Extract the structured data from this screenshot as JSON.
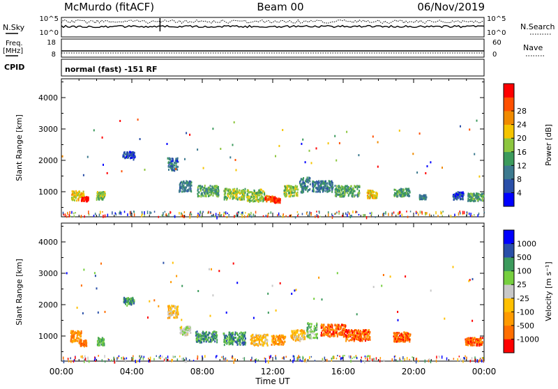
{
  "header": {
    "station": "McMurdo (fitACF)",
    "beam": "Beam 00",
    "date": "06/Nov/2019",
    "mode": "normal (fast) -151 RF"
  },
  "left_labels": {
    "nsky": "N.Sky",
    "freq": "Freq.",
    "freq_unit": "[MHz]",
    "cpid": "CPID"
  },
  "right_labels": {
    "nsearch": "N.Search",
    "nave": "Nave"
  },
  "noise_axis": {
    "left_ticks": [
      "10^5",
      "10^0"
    ],
    "right_ticks": [
      "10^5",
      "10^0"
    ]
  },
  "freq_axis": {
    "left_ticks": [
      "18",
      "8"
    ],
    "right_ticks": [
      "60",
      "0"
    ]
  },
  "colors": {
    "power": [
      "#0000ff",
      "#2a4fa8",
      "#3d7a8f",
      "#3c9a5c",
      "#8dc63f",
      "#f5c400",
      "#f08a00",
      "#ff5000",
      "#ff0000"
    ],
    "velocity": [
      "#ff0000",
      "#ff6e00",
      "#ff9a00",
      "#ffc000",
      "#c8c8c8",
      "#76cf3f",
      "#3c9a5c",
      "#2a4fa8",
      "#0000ff"
    ]
  },
  "chart_data": [
    {
      "type": "heatmap",
      "name": "power",
      "xlabel": "Time UT",
      "ylabel": "Slant Range [km]",
      "xlim": [
        0,
        24
      ],
      "ylim": [
        200,
        4600
      ],
      "yticks": [
        "1000",
        "2000",
        "3000",
        "4000"
      ],
      "colorbar_label": "Power [dB]",
      "colorbar_ticks": [
        "4",
        "8",
        "12",
        "16",
        "20",
        "24",
        "28"
      ],
      "series": [
        {
          "t": 0.9,
          "r": 900,
          "dt": 0.7,
          "dr": 300,
          "lvl": 5
        },
        {
          "t": 1.3,
          "r": 800,
          "dt": 0.4,
          "dr": 150,
          "lvl": 8
        },
        {
          "t": 2.2,
          "r": 900,
          "dt": 0.5,
          "dr": 250,
          "lvl": 4
        },
        {
          "t": 3.8,
          "r": 2200,
          "dt": 0.7,
          "dr": 200,
          "lvl": 1
        },
        {
          "t": 6.3,
          "r": 1900,
          "dt": 0.6,
          "dr": 400,
          "lvl": 2
        },
        {
          "t": 7.0,
          "r": 1200,
          "dt": 0.7,
          "dr": 350,
          "lvl": 2
        },
        {
          "t": 8.3,
          "r": 1050,
          "dt": 1.2,
          "dr": 350,
          "lvl": 3
        },
        {
          "t": 9.8,
          "r": 950,
          "dt": 1.2,
          "dr": 350,
          "lvl": 4
        },
        {
          "t": 11.0,
          "r": 900,
          "dt": 1.0,
          "dr": 400,
          "lvl": 4
        },
        {
          "t": 11.8,
          "r": 800,
          "dt": 0.6,
          "dr": 200,
          "lvl": 7
        },
        {
          "t": 12.2,
          "r": 750,
          "dt": 0.4,
          "dr": 150,
          "lvl": 8
        },
        {
          "t": 13.0,
          "r": 1050,
          "dt": 0.8,
          "dr": 350,
          "lvl": 4
        },
        {
          "t": 13.8,
          "r": 1250,
          "dt": 0.6,
          "dr": 500,
          "lvl": 2
        },
        {
          "t": 14.8,
          "r": 1200,
          "dt": 1.2,
          "dr": 350,
          "lvl": 2
        },
        {
          "t": 16.2,
          "r": 1050,
          "dt": 1.4,
          "dr": 350,
          "lvl": 3
        },
        {
          "t": 17.6,
          "r": 950,
          "dt": 0.6,
          "dr": 250,
          "lvl": 5
        },
        {
          "t": 19.3,
          "r": 1000,
          "dt": 0.9,
          "dr": 250,
          "lvl": 3
        },
        {
          "t": 20.5,
          "r": 850,
          "dt": 0.4,
          "dr": 150,
          "lvl": 2
        },
        {
          "t": 22.5,
          "r": 900,
          "dt": 0.6,
          "dr": 250,
          "lvl": 1
        },
        {
          "t": 23.5,
          "r": 850,
          "dt": 0.9,
          "dr": 250,
          "lvl": 3
        }
      ]
    },
    {
      "type": "heatmap",
      "name": "velocity",
      "xlabel": "Time UT",
      "ylabel": "Slant Range [km]",
      "xlim": [
        0,
        24
      ],
      "ylim": [
        200,
        4600
      ],
      "yticks": [
        "1000",
        "2000",
        "3000",
        "4000"
      ],
      "xticks": [
        "00:00",
        "04:00",
        "08:00",
        "12:00",
        "16:00",
        "20:00",
        "00:00"
      ],
      "colorbar_label": "Velocity [m s⁻¹]",
      "colorbar_ticks": [
        "-1000",
        "-500",
        "-100",
        "-25",
        "25",
        "100",
        "500",
        "1000"
      ],
      "series": [
        {
          "t": 0.8,
          "r": 1000,
          "dt": 0.6,
          "dr": 400,
          "lvl": 2
        },
        {
          "t": 1.2,
          "r": 800,
          "dt": 0.4,
          "dr": 200,
          "lvl": 1
        },
        {
          "t": 2.2,
          "r": 850,
          "dt": 0.4,
          "dr": 250,
          "lvl": 5
        },
        {
          "t": 3.8,
          "r": 2150,
          "dt": 0.6,
          "dr": 200,
          "lvl": 6
        },
        {
          "t": 6.3,
          "r": 1800,
          "dt": 0.6,
          "dr": 400,
          "lvl": 3
        },
        {
          "t": 7.0,
          "r": 1200,
          "dt": 0.6,
          "dr": 300,
          "lvl": 4
        },
        {
          "t": 8.2,
          "r": 1000,
          "dt": 1.2,
          "dr": 350,
          "lvl": 6
        },
        {
          "t": 9.8,
          "r": 950,
          "dt": 1.3,
          "dr": 400,
          "lvl": 6
        },
        {
          "t": 11.2,
          "r": 900,
          "dt": 1.0,
          "dr": 350,
          "lvl": 3
        },
        {
          "t": 12.3,
          "r": 900,
          "dt": 0.8,
          "dr": 300,
          "lvl": 2
        },
        {
          "t": 13.4,
          "r": 1050,
          "dt": 0.8,
          "dr": 350,
          "lvl": 3
        },
        {
          "t": 14.2,
          "r": 1200,
          "dt": 0.6,
          "dr": 500,
          "lvl": 5
        },
        {
          "t": 15.4,
          "r": 1200,
          "dt": 1.4,
          "dr": 400,
          "lvl": 1
        },
        {
          "t": 16.8,
          "r": 1050,
          "dt": 1.4,
          "dr": 350,
          "lvl": 1
        },
        {
          "t": 19.3,
          "r": 1000,
          "dt": 1.0,
          "dr": 300,
          "lvl": 1
        },
        {
          "t": 23.4,
          "r": 850,
          "dt": 1.0,
          "dr": 250,
          "lvl": 1
        }
      ]
    }
  ]
}
